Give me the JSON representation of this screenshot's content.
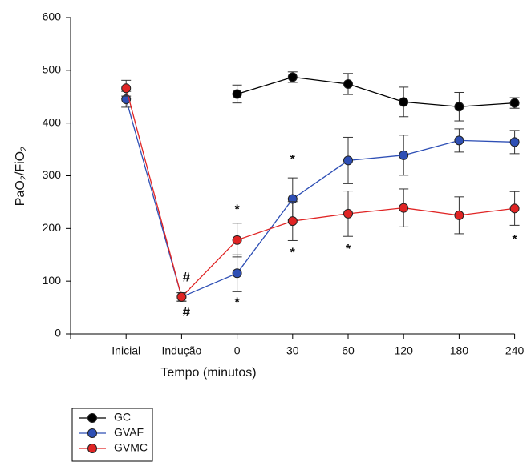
{
  "chart_data": {
    "type": "line",
    "ylabel_parts": [
      "PaO",
      "2",
      "/FiO",
      "2"
    ],
    "xlabel": "Tempo (minutos)",
    "categories": [
      "Inicial",
      "Indução",
      "0",
      "30",
      "60",
      "120",
      "180",
      "240"
    ],
    "ylim": [
      0,
      600
    ],
    "yticks": [
      0,
      100,
      200,
      300,
      400,
      500,
      600
    ],
    "series": [
      {
        "name": "GC",
        "color": "#000000",
        "values": [
          null,
          null,
          455,
          487,
          474,
          440,
          431,
          438
        ],
        "errors": [
          null,
          null,
          17,
          10,
          20,
          28,
          27,
          10
        ]
      },
      {
        "name": "GVAF",
        "color": "#2e4fb5",
        "values": [
          445,
          70,
          115,
          256,
          329,
          339,
          367,
          364
        ],
        "errors": [
          15,
          8,
          35,
          40,
          44,
          38,
          22,
          22
        ]
      },
      {
        "name": "GVMC",
        "color": "#e02424",
        "values": [
          466,
          70,
          178,
          214,
          228,
          239,
          225,
          238
        ],
        "errors": [
          15,
          8,
          32,
          37,
          43,
          36,
          35,
          32
        ]
      }
    ],
    "annotations": [
      {
        "text": "#",
        "category": 1,
        "y": 106
      },
      {
        "text": "#",
        "category": 1,
        "y": 40
      },
      {
        "text": "*",
        "category": 2,
        "y": 235
      },
      {
        "text": "*",
        "category": 2,
        "y": 59
      },
      {
        "text": "*",
        "category": 3,
        "y": 330
      },
      {
        "text": "*",
        "category": 3,
        "y": 153
      },
      {
        "text": "*",
        "category": 4,
        "y": 160
      },
      {
        "text": "*",
        "category": 7,
        "y": 178
      }
    ],
    "legend": "bottom-left"
  }
}
